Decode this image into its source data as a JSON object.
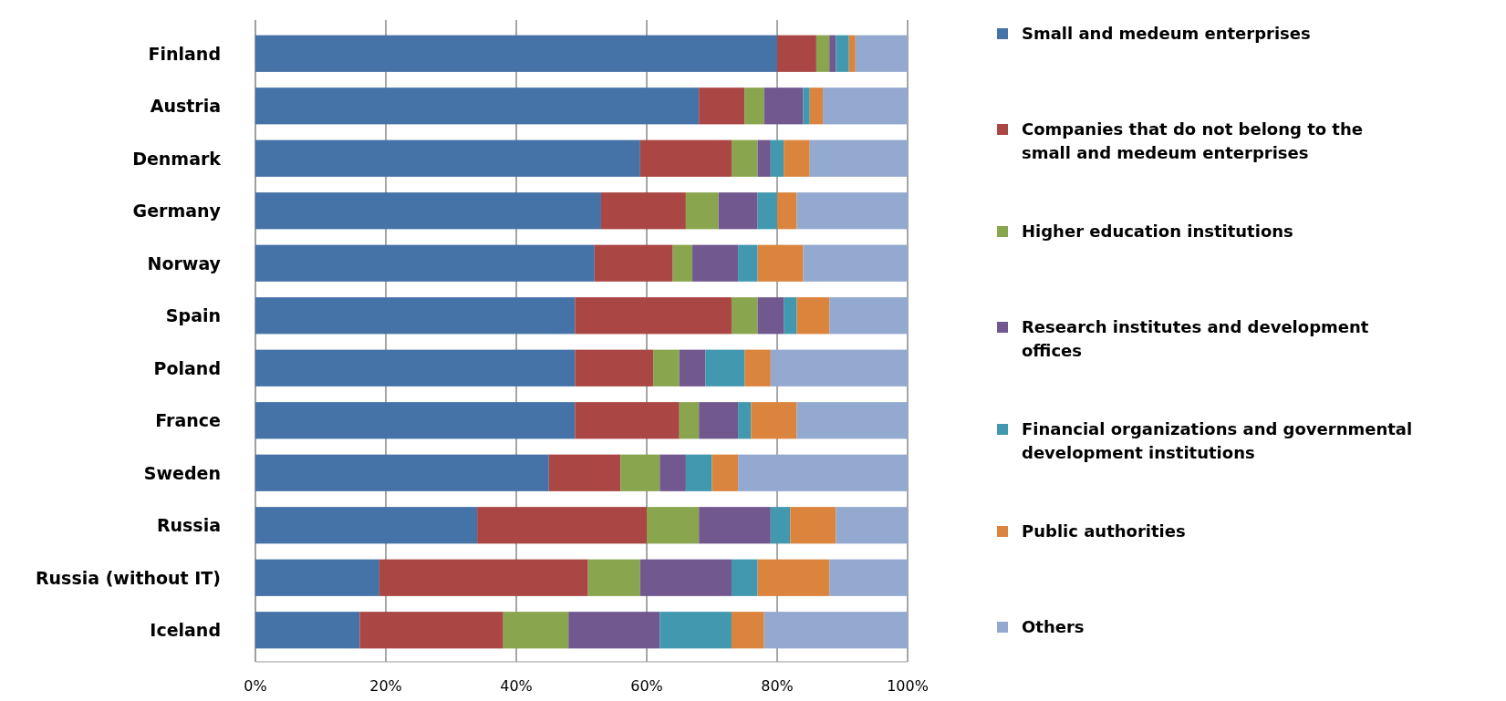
{
  "chart_data": {
    "type": "bar",
    "orientation": "horizontal",
    "stacked": true,
    "categories": [
      "Finland",
      "Austria",
      "Denmark",
      "Germany",
      "Norway",
      "Spain",
      "Poland",
      "France",
      "Sweden",
      "Russia",
      "Russia (without IT)",
      "Iceland"
    ],
    "series": [
      {
        "name": "Small and medeum enterprises",
        "color": "#4572a7",
        "values": [
          80,
          68,
          59,
          53,
          52,
          49,
          49,
          49,
          45,
          34,
          19,
          16
        ]
      },
      {
        "name": "Companies that do not belong to the small and medeum enterprises",
        "color": "#aa4643",
        "values": [
          6,
          7,
          14,
          13,
          12,
          24,
          12,
          16,
          11,
          26,
          32,
          22
        ]
      },
      {
        "name": "Higher education institutions",
        "color": "#89a54e",
        "values": [
          2,
          3,
          4,
          5,
          3,
          4,
          4,
          3,
          6,
          8,
          8,
          10
        ]
      },
      {
        "name": "Research institutes and development offices",
        "color": "#71588f",
        "values": [
          1,
          6,
          2,
          6,
          7,
          4,
          4,
          6,
          4,
          11,
          14,
          14
        ]
      },
      {
        "name": "Financial organizations and governmental development institutions",
        "color": "#4198af",
        "values": [
          2,
          1,
          2,
          3,
          3,
          2,
          6,
          2,
          4,
          3,
          4,
          11
        ]
      },
      {
        "name": "Public authorities",
        "color": "#db843d",
        "values": [
          1,
          2,
          4,
          3,
          7,
          5,
          4,
          7,
          4,
          7,
          11,
          5
        ]
      },
      {
        "name": "Others",
        "color": "#93a9cf",
        "values": [
          8,
          13,
          15,
          17,
          16,
          12,
          21,
          17,
          26,
          11,
          12,
          22
        ]
      }
    ],
    "xlim": [
      0,
      100
    ],
    "xticks": [
      {
        "value": 0,
        "label": "0%"
      },
      {
        "value": 20,
        "label": "20%"
      },
      {
        "value": 40,
        "label": "40%"
      },
      {
        "value": 60,
        "label": "60%"
      },
      {
        "value": 80,
        "label": "80%"
      },
      {
        "value": 100,
        "label": "100%"
      }
    ],
    "grid": "x",
    "legend": "right"
  }
}
